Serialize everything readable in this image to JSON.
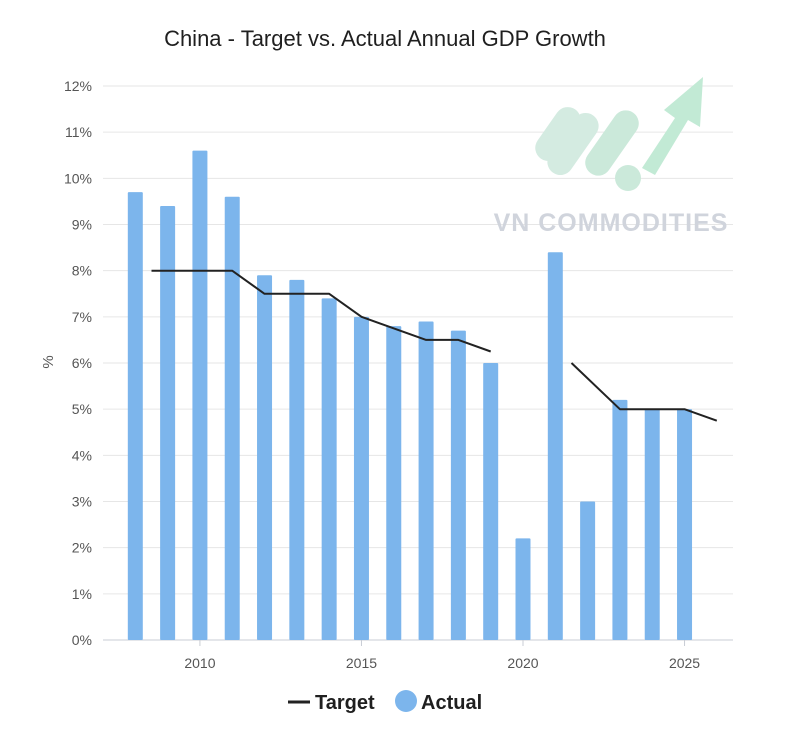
{
  "chart_data": {
    "type": "bar",
    "title": "China - Target vs. Actual Annual GDP Growth",
    "ylabel": "%",
    "xlabel": "",
    "ylim": [
      0,
      12
    ],
    "yticks": [
      "0%",
      "1%",
      "2%",
      "3%",
      "4%",
      "5%",
      "6%",
      "7%",
      "8%",
      "9%",
      "10%",
      "11%",
      "12%"
    ],
    "xticks": [
      "2010",
      "2015",
      "2020",
      "2025"
    ],
    "grid": true,
    "legend_position": "bottom-center",
    "series": [
      {
        "name": "Actual",
        "type": "bar",
        "color": "#7cb5ec",
        "x": [
          2008,
          2009,
          2010,
          2011,
          2012,
          2013,
          2014,
          2015,
          2016,
          2017,
          2018,
          2019,
          2020,
          2021,
          2022,
          2023,
          2024,
          2025
        ],
        "values": [
          9.7,
          9.4,
          10.6,
          9.6,
          7.9,
          7.8,
          7.4,
          7.0,
          6.8,
          6.9,
          6.7,
          6.0,
          2.2,
          8.4,
          3.0,
          5.2,
          5.0,
          5.0
        ]
      },
      {
        "name": "Target",
        "type": "line",
        "color": "#222222",
        "segments": [
          [
            [
              2008.5,
              8.0
            ],
            [
              2011,
              8.0
            ],
            [
              2012,
              7.5
            ],
            [
              2014,
              7.5
            ],
            [
              2015,
              7.0
            ],
            [
              2017,
              6.5
            ],
            [
              2018,
              6.5
            ],
            [
              2019,
              6.25
            ]
          ],
          [
            [
              2021.5,
              6.0
            ],
            [
              2023,
              5.0
            ],
            [
              2025,
              5.0
            ],
            [
              2026,
              4.75
            ]
          ]
        ]
      }
    ],
    "legend": [
      "Target",
      "Actual"
    ]
  },
  "watermark": {
    "text": "VN COMMODITIES",
    "colors": [
      "#cde9dc",
      "#bfe8d3"
    ]
  }
}
